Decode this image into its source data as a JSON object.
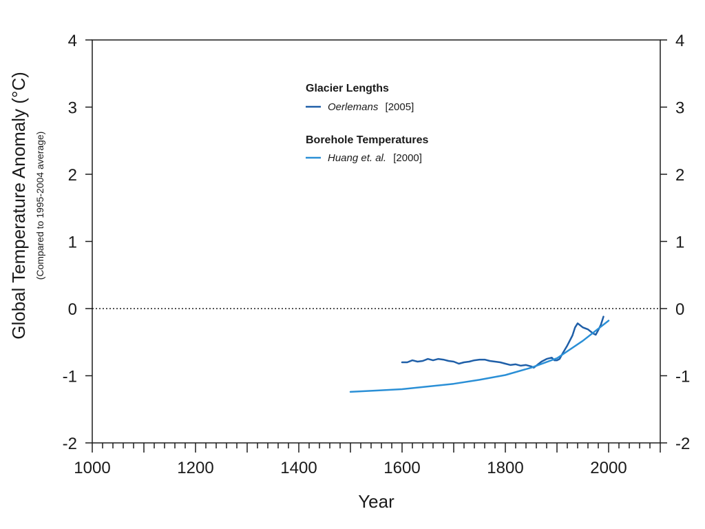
{
  "chart_data": {
    "type": "line",
    "ylabel": "Global Temperature Anomaly (°C)",
    "ylabel_sub": "(Compared to 1995-2004 average)",
    "xlabel": "Year",
    "xlim": [
      1000,
      2100
    ],
    "ylim": [
      -2,
      4
    ],
    "x_ticks": [
      1000,
      1200,
      1400,
      1600,
      1800,
      2000
    ],
    "y_ticks": [
      -2,
      -1,
      0,
      1,
      2,
      3,
      4
    ],
    "y_tick_labels": [
      "-2",
      "-1",
      "0",
      "1",
      "2",
      "3",
      "4"
    ],
    "minor_x_tick_step": 20,
    "reference_line": {
      "y": 0,
      "style": "dotted"
    },
    "grid": false,
    "legend_placement": "top-center",
    "legend_groups": [
      {
        "title": "Glacier Lengths",
        "entry_name": "Oerlemans",
        "entry_ref": "[2005]",
        "series_index": 0
      },
      {
        "title": "Borehole Temperatures",
        "entry_name": "Huang et. al.",
        "entry_ref": "[2000]",
        "series_index": 1
      }
    ],
    "series": [
      {
        "name": "Oerlemans [2005]",
        "color": "#1f5fa8",
        "points": [
          [
            1600,
            -0.8
          ],
          [
            1610,
            -0.8
          ],
          [
            1620,
            -0.77
          ],
          [
            1630,
            -0.79
          ],
          [
            1640,
            -0.78
          ],
          [
            1650,
            -0.75
          ],
          [
            1660,
            -0.77
          ],
          [
            1670,
            -0.75
          ],
          [
            1680,
            -0.76
          ],
          [
            1690,
            -0.78
          ],
          [
            1700,
            -0.79
          ],
          [
            1710,
            -0.82
          ],
          [
            1720,
            -0.8
          ],
          [
            1730,
            -0.79
          ],
          [
            1740,
            -0.77
          ],
          [
            1750,
            -0.76
          ],
          [
            1760,
            -0.76
          ],
          [
            1770,
            -0.78
          ],
          [
            1780,
            -0.79
          ],
          [
            1790,
            -0.8
          ],
          [
            1800,
            -0.82
          ],
          [
            1810,
            -0.84
          ],
          [
            1820,
            -0.83
          ],
          [
            1830,
            -0.85
          ],
          [
            1840,
            -0.84
          ],
          [
            1850,
            -0.86
          ],
          [
            1855,
            -0.88
          ],
          [
            1860,
            -0.85
          ],
          [
            1870,
            -0.79
          ],
          [
            1880,
            -0.75
          ],
          [
            1890,
            -0.73
          ],
          [
            1895,
            -0.77
          ],
          [
            1900,
            -0.77
          ],
          [
            1905,
            -0.75
          ],
          [
            1910,
            -0.68
          ],
          [
            1920,
            -0.55
          ],
          [
            1930,
            -0.4
          ],
          [
            1935,
            -0.28
          ],
          [
            1940,
            -0.22
          ],
          [
            1945,
            -0.25
          ],
          [
            1950,
            -0.28
          ],
          [
            1960,
            -0.31
          ],
          [
            1970,
            -0.37
          ],
          [
            1975,
            -0.39
          ],
          [
            1980,
            -0.32
          ],
          [
            1985,
            -0.24
          ],
          [
            1990,
            -0.12
          ]
        ]
      },
      {
        "name": "Huang et. al. [2000]",
        "color": "#2a8fd6",
        "points": [
          [
            1500,
            -1.24
          ],
          [
            1550,
            -1.22
          ],
          [
            1600,
            -1.2
          ],
          [
            1650,
            -1.16
          ],
          [
            1700,
            -1.12
          ],
          [
            1750,
            -1.06
          ],
          [
            1800,
            -0.99
          ],
          [
            1850,
            -0.88
          ],
          [
            1900,
            -0.74
          ],
          [
            1950,
            -0.48
          ],
          [
            2000,
            -0.18
          ]
        ]
      }
    ]
  }
}
